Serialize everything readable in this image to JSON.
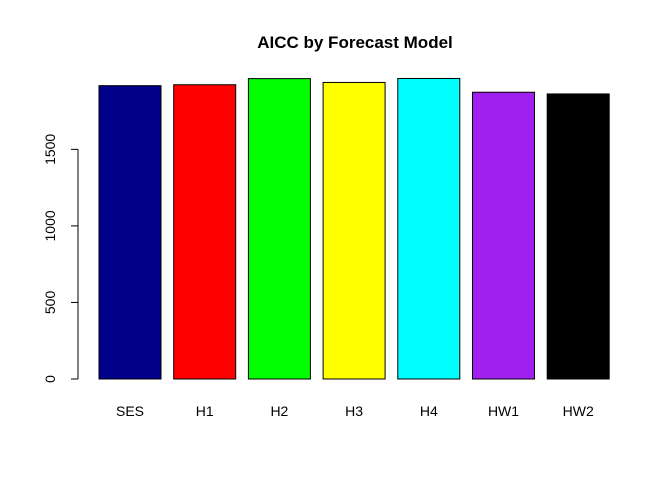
{
  "chart_data": {
    "type": "bar",
    "title": "AICC by Forecast Model",
    "xlabel": "",
    "ylabel": "",
    "categories": [
      "SES",
      "H1",
      "H2",
      "H3",
      "H4",
      "HW1",
      "HW2"
    ],
    "values": [
      1916,
      1922,
      1962,
      1937,
      1963,
      1873,
      1862
    ],
    "colors": [
      "#00008B",
      "#FF0000",
      "#00FF00",
      "#FFFF00",
      "#00FFFF",
      "#A020F0",
      "#000000"
    ],
    "yticks": [
      0,
      500,
      1000,
      1500
    ],
    "ylim": [
      0,
      2000
    ],
    "grid": false,
    "legend": "none"
  }
}
